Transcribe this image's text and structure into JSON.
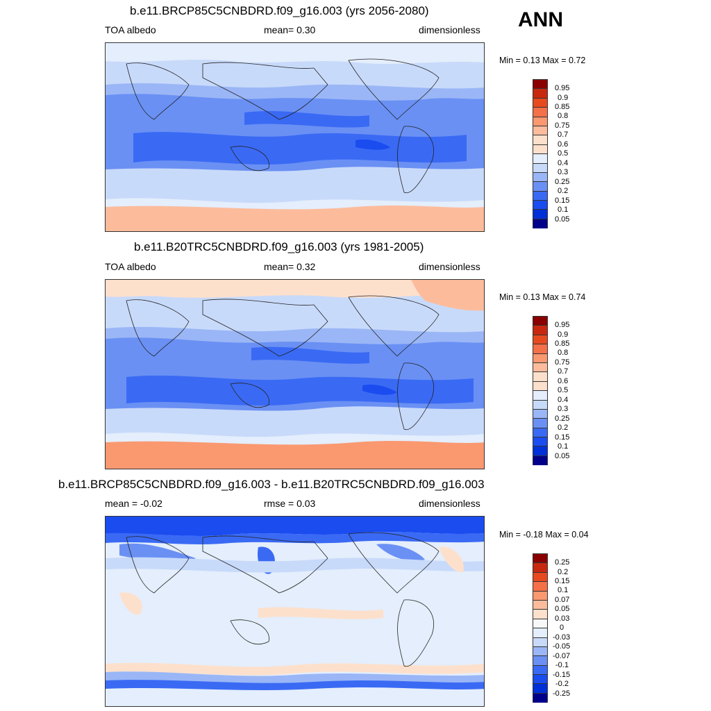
{
  "season": "ANN",
  "panels": [
    {
      "title": "b.e11.BRCP85C5CNBDRD.f09_g16.003 (yrs 2056-2080)",
      "left_label": "TOA albedo",
      "center_label": "mean=   0.30",
      "right_label": "dimensionless",
      "minmax": "Min =   0.13 Max =   0.72",
      "color_levels": [
        "0.05",
        "0.1",
        "0.15",
        "0.2",
        "0.25",
        "0.3",
        "0.4",
        "0.5",
        "0.6",
        "0.7",
        "0.75",
        "0.8",
        "0.85",
        "0.9",
        "0.95"
      ]
    },
    {
      "title": "b.e11.B20TRC5CNBDRD.f09_g16.003 (yrs 1981-2005)",
      "left_label": "TOA albedo",
      "center_label": "mean=   0.32",
      "right_label": "dimensionless",
      "minmax": "Min =   0.13 Max =   0.74",
      "color_levels": [
        "0.05",
        "0.1",
        "0.15",
        "0.2",
        "0.25",
        "0.3",
        "0.4",
        "0.5",
        "0.6",
        "0.7",
        "0.75",
        "0.8",
        "0.85",
        "0.9",
        "0.95"
      ]
    },
    {
      "title": "b.e11.BRCP85C5CNBDRD.f09_g16.003 - b.e11.B20TRC5CNBDRD.f09_g16.003",
      "left_label": "mean =  -0.02",
      "center_label": "rmse =   0.03",
      "right_label": "dimensionless",
      "minmax": "Min =  -0.18 Max =   0.04",
      "color_levels": [
        "-0.25",
        "-0.2",
        "-0.15",
        "-0.1",
        "-0.07",
        "-0.05",
        "-0.03",
        "0",
        "0.03",
        "0.05",
        "0.07",
        "0.1",
        "0.15",
        "0.2",
        "0.25"
      ]
    }
  ],
  "colors": {
    "palette": [
      "#00008b",
      "#0018b8",
      "#0030d8",
      "#1a4cf0",
      "#3a6af4",
      "#6a90f4",
      "#9ab6f6",
      "#c8dafa",
      "#e4eefc",
      "#fde0cc",
      "#fcbc9c",
      "#fa9870",
      "#f47048",
      "#e84a20",
      "#c82810",
      "#8a0000"
    ]
  }
}
